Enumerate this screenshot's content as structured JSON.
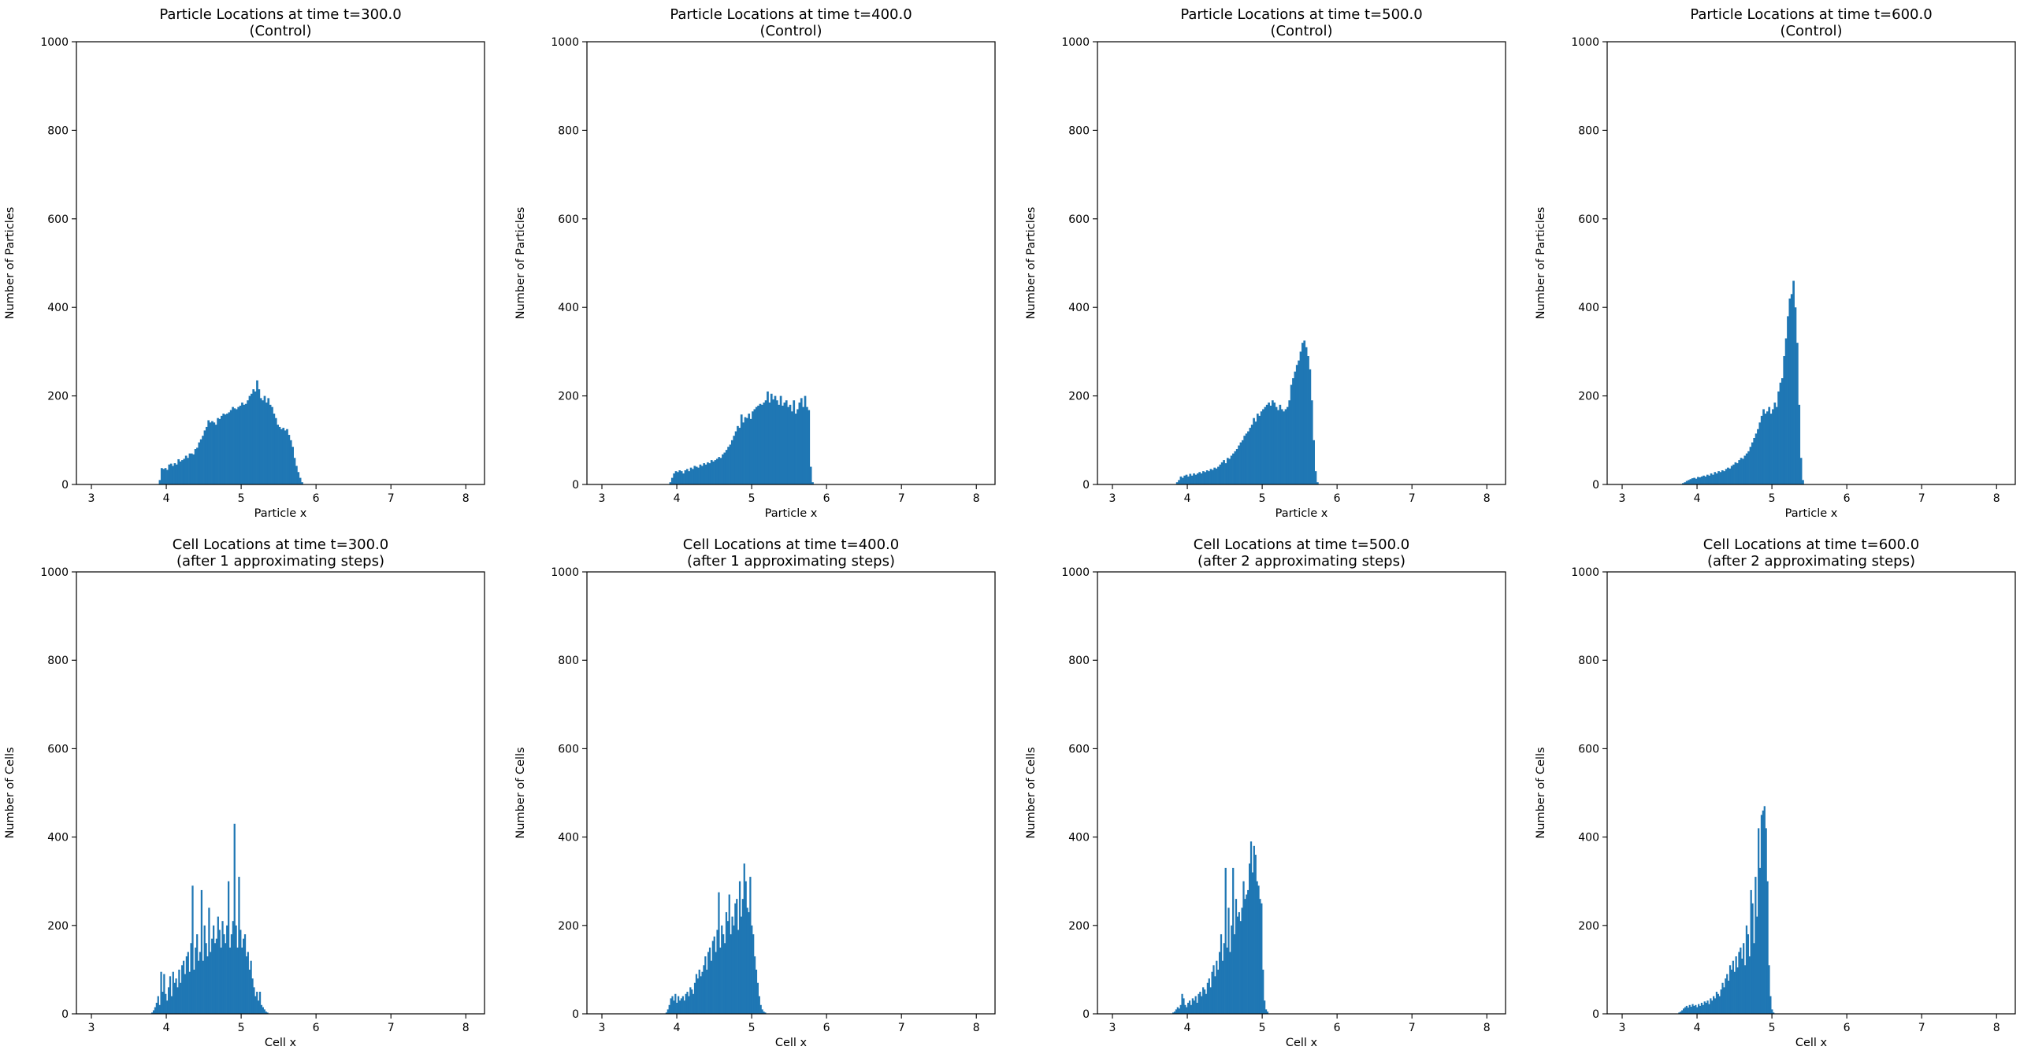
{
  "figure": {
    "background": "#ffffff",
    "bar_color": "#1f77b4"
  },
  "chart_data": [
    {
      "type": "bar",
      "panel": "top-1",
      "title": "Particle Locations at time t=300.0",
      "subtitle": "(Control)",
      "xlabel": "Particle x",
      "ylabel": "Number of Particles",
      "xlim": [
        2.8,
        8.25
      ],
      "ylim": [
        0,
        1000
      ],
      "xticks": [
        3,
        4,
        5,
        6,
        7,
        8
      ],
      "yticks": [
        0,
        200,
        400,
        600,
        800,
        1000
      ],
      "bin_width": 0.025,
      "x_start": 3.9,
      "values": [
        10,
        37,
        35,
        37,
        33,
        45,
        47,
        42,
        48,
        45,
        57,
        52,
        55,
        58,
        65,
        60,
        70,
        70,
        68,
        80,
        83,
        95,
        102,
        110,
        122,
        130,
        145,
        140,
        143,
        140,
        135,
        150,
        148,
        155,
        160,
        158,
        160,
        163,
        168,
        175,
        172,
        170,
        175,
        178,
        185,
        180,
        182,
        190,
        200,
        205,
        215,
        210,
        235,
        215,
        195,
        190,
        200,
        185,
        195,
        180,
        175,
        160,
        150,
        135,
        130,
        125,
        128,
        122,
        125,
        112,
        100,
        85,
        60,
        42,
        28,
        15,
        5
      ]
    },
    {
      "type": "bar",
      "panel": "top-2",
      "title": "Particle Locations at time t=400.0",
      "subtitle": "(Control)",
      "xlabel": "Particle x",
      "ylabel": "Number of Particles",
      "xlim": [
        2.8,
        8.25
      ],
      "ylim": [
        0,
        1000
      ],
      "xticks": [
        3,
        4,
        5,
        6,
        7,
        8
      ],
      "yticks": [
        0,
        200,
        400,
        600,
        800,
        1000
      ],
      "bin_width": 0.025,
      "x_start": 3.9,
      "values": [
        5,
        15,
        25,
        30,
        28,
        32,
        30,
        25,
        32,
        35,
        30,
        38,
        35,
        42,
        40,
        38,
        45,
        42,
        48,
        45,
        50,
        48,
        55,
        52,
        55,
        58,
        62,
        60,
        68,
        72,
        78,
        85,
        90,
        100,
        110,
        120,
        132,
        128,
        158,
        140,
        152,
        150,
        160,
        148,
        165,
        170,
        175,
        178,
        182,
        180,
        185,
        190,
        210,
        185,
        205,
        192,
        200,
        190,
        180,
        200,
        178,
        185,
        190,
        175,
        180,
        165,
        190,
        160,
        170,
        185,
        195,
        175,
        200,
        175,
        168,
        40,
        5
      ]
    },
    {
      "type": "bar",
      "panel": "top-3",
      "title": "Particle Locations at time t=500.0",
      "subtitle": "(Control)",
      "xlabel": "Particle x",
      "ylabel": "Number of Particles",
      "xlim": [
        2.8,
        8.25
      ],
      "ylim": [
        0,
        1000
      ],
      "xticks": [
        3,
        4,
        5,
        6,
        7,
        8
      ],
      "yticks": [
        0,
        200,
        400,
        600,
        800,
        1000
      ],
      "bin_width": 0.025,
      "x_start": 3.85,
      "values": [
        5,
        10,
        18,
        15,
        20,
        22,
        18,
        24,
        20,
        25,
        22,
        25,
        28,
        25,
        30,
        28,
        32,
        30,
        35,
        33,
        38,
        36,
        40,
        45,
        50,
        55,
        48,
        60,
        58,
        65,
        70,
        75,
        80,
        88,
        95,
        100,
        110,
        115,
        120,
        128,
        135,
        150,
        142,
        160,
        155,
        165,
        170,
        175,
        180,
        185,
        178,
        190,
        185,
        175,
        168,
        180,
        170,
        165,
        170,
        175,
        190,
        225,
        240,
        255,
        270,
        280,
        300,
        320,
        325,
        310,
        290,
        260,
        190,
        100,
        30,
        5
      ]
    },
    {
      "type": "bar",
      "panel": "top-4",
      "title": "Particle Locations at time t=600.0",
      "subtitle": "(Control)",
      "xlabel": "Particle x",
      "ylabel": "Number of Particles",
      "xlim": [
        2.8,
        8.25
      ],
      "ylim": [
        0,
        1000
      ],
      "xticks": [
        3,
        4,
        5,
        6,
        7,
        8
      ],
      "yticks": [
        0,
        200,
        400,
        600,
        800,
        1000
      ],
      "bin_width": 0.025,
      "x_start": 3.8,
      "values": [
        3,
        5,
        8,
        10,
        12,
        14,
        15,
        13,
        17,
        16,
        18,
        20,
        18,
        22,
        20,
        25,
        22,
        28,
        25,
        30,
        28,
        32,
        30,
        35,
        38,
        36,
        42,
        45,
        50,
        48,
        55,
        60,
        58,
        65,
        70,
        75,
        85,
        95,
        105,
        115,
        125,
        140,
        155,
        170,
        160,
        165,
        175,
        160,
        170,
        185,
        175,
        210,
        230,
        240,
        290,
        330,
        380,
        420,
        430,
        460,
        400,
        320,
        180,
        60,
        10
      ]
    },
    {
      "type": "bar",
      "panel": "bottom-1",
      "title": "Cell Locations at time t=300.0",
      "subtitle": "(after 1 approximating steps)",
      "xlabel": "Cell x",
      "ylabel": "Number of Cells",
      "xlim": [
        2.8,
        8.25
      ],
      "ylim": [
        0,
        1000
      ],
      "xticks": [
        3,
        4,
        5,
        6,
        7,
        8
      ],
      "yticks": [
        0,
        200,
        400,
        600,
        800,
        1000
      ],
      "bin_width": 0.02,
      "x_start": 3.8,
      "values": [
        3,
        8,
        15,
        25,
        40,
        20,
        95,
        50,
        90,
        45,
        30,
        60,
        85,
        40,
        95,
        70,
        80,
        60,
        100,
        70,
        110,
        120,
        90,
        130,
        140,
        95,
        160,
        290,
        100,
        150,
        180,
        120,
        140,
        280,
        120,
        200,
        160,
        130,
        240,
        140,
        170,
        200,
        160,
        170,
        220,
        190,
        150,
        210,
        180,
        160,
        200,
        300,
        150,
        180,
        210,
        430,
        200,
        150,
        310,
        190,
        150,
        170,
        180,
        130,
        140,
        100,
        120,
        80,
        60,
        40,
        50,
        30,
        50,
        20,
        15,
        10,
        5,
        3
      ]
    },
    {
      "type": "bar",
      "panel": "bottom-2",
      "title": "Cell Locations at time t=400.0",
      "subtitle": "(after 1 approximating steps)",
      "xlabel": "Cell x",
      "ylabel": "Number of Cells",
      "xlim": [
        2.8,
        8.25
      ],
      "ylim": [
        0,
        1000
      ],
      "xticks": [
        3,
        4,
        5,
        6,
        7,
        8
      ],
      "yticks": [
        0,
        200,
        400,
        600,
        800,
        1000
      ],
      "bin_width": 0.02,
      "x_start": 3.85,
      "values": [
        3,
        10,
        20,
        35,
        40,
        30,
        45,
        25,
        40,
        30,
        35,
        40,
        30,
        45,
        50,
        40,
        60,
        55,
        45,
        70,
        90,
        80,
        100,
        85,
        95,
        110,
        130,
        100,
        140,
        150,
        120,
        165,
        175,
        140,
        190,
        275,
        150,
        200,
        180,
        160,
        230,
        210,
        270,
        180,
        220,
        200,
        250,
        260,
        190,
        300,
        220,
        260,
        340,
        300,
        240,
        230,
        310,
        200,
        180,
        130,
        100,
        70,
        40,
        20,
        10,
        5,
        3
      ]
    },
    {
      "type": "bar",
      "panel": "bottom-3",
      "title": "Cell Locations at time t=500.0",
      "subtitle": "(after 2 approximating steps)",
      "xlabel": "Cell x",
      "ylabel": "Number of Cells",
      "xlim": [
        2.8,
        8.25
      ],
      "ylim": [
        0,
        1000
      ],
      "xticks": [
        3,
        4,
        5,
        6,
        7,
        8
      ],
      "yticks": [
        0,
        200,
        400,
        600,
        800,
        1000
      ],
      "bin_width": 0.02,
      "x_start": 3.8,
      "values": [
        3,
        5,
        10,
        15,
        12,
        20,
        45,
        35,
        20,
        15,
        25,
        30,
        20,
        35,
        30,
        40,
        25,
        45,
        50,
        40,
        60,
        55,
        45,
        70,
        80,
        60,
        95,
        110,
        85,
        120,
        100,
        140,
        180,
        120,
        160,
        330,
        150,
        240,
        140,
        200,
        330,
        180,
        260,
        220,
        230,
        210,
        240,
        300,
        260,
        270,
        280,
        340,
        390,
        320,
        380,
        360,
        300,
        290,
        260,
        250,
        100,
        30,
        10,
        5
      ]
    },
    {
      "type": "bar",
      "panel": "bottom-4",
      "title": "Cell Locations at time t=600.0",
      "subtitle": "(after 2 approximating steps)",
      "xlabel": "Cell x",
      "ylabel": "Number of Cells",
      "xlim": [
        2.8,
        8.25
      ],
      "ylim": [
        0,
        1000
      ],
      "xticks": [
        3,
        4,
        5,
        6,
        7,
        8
      ],
      "yticks": [
        0,
        200,
        400,
        600,
        800,
        1000
      ],
      "bin_width": 0.02,
      "x_start": 3.75,
      "values": [
        3,
        5,
        8,
        12,
        15,
        18,
        14,
        20,
        16,
        22,
        18,
        20,
        15,
        22,
        18,
        25,
        20,
        28,
        25,
        30,
        22,
        35,
        30,
        40,
        35,
        50,
        45,
        40,
        55,
        70,
        60,
        80,
        90,
        75,
        110,
        100,
        120,
        95,
        130,
        105,
        140,
        150,
        125,
        160,
        110,
        200,
        180,
        130,
        280,
        250,
        160,
        310,
        220,
        420,
        330,
        450,
        460,
        470,
        420,
        300,
        110,
        40,
        10,
        3
      ]
    }
  ]
}
